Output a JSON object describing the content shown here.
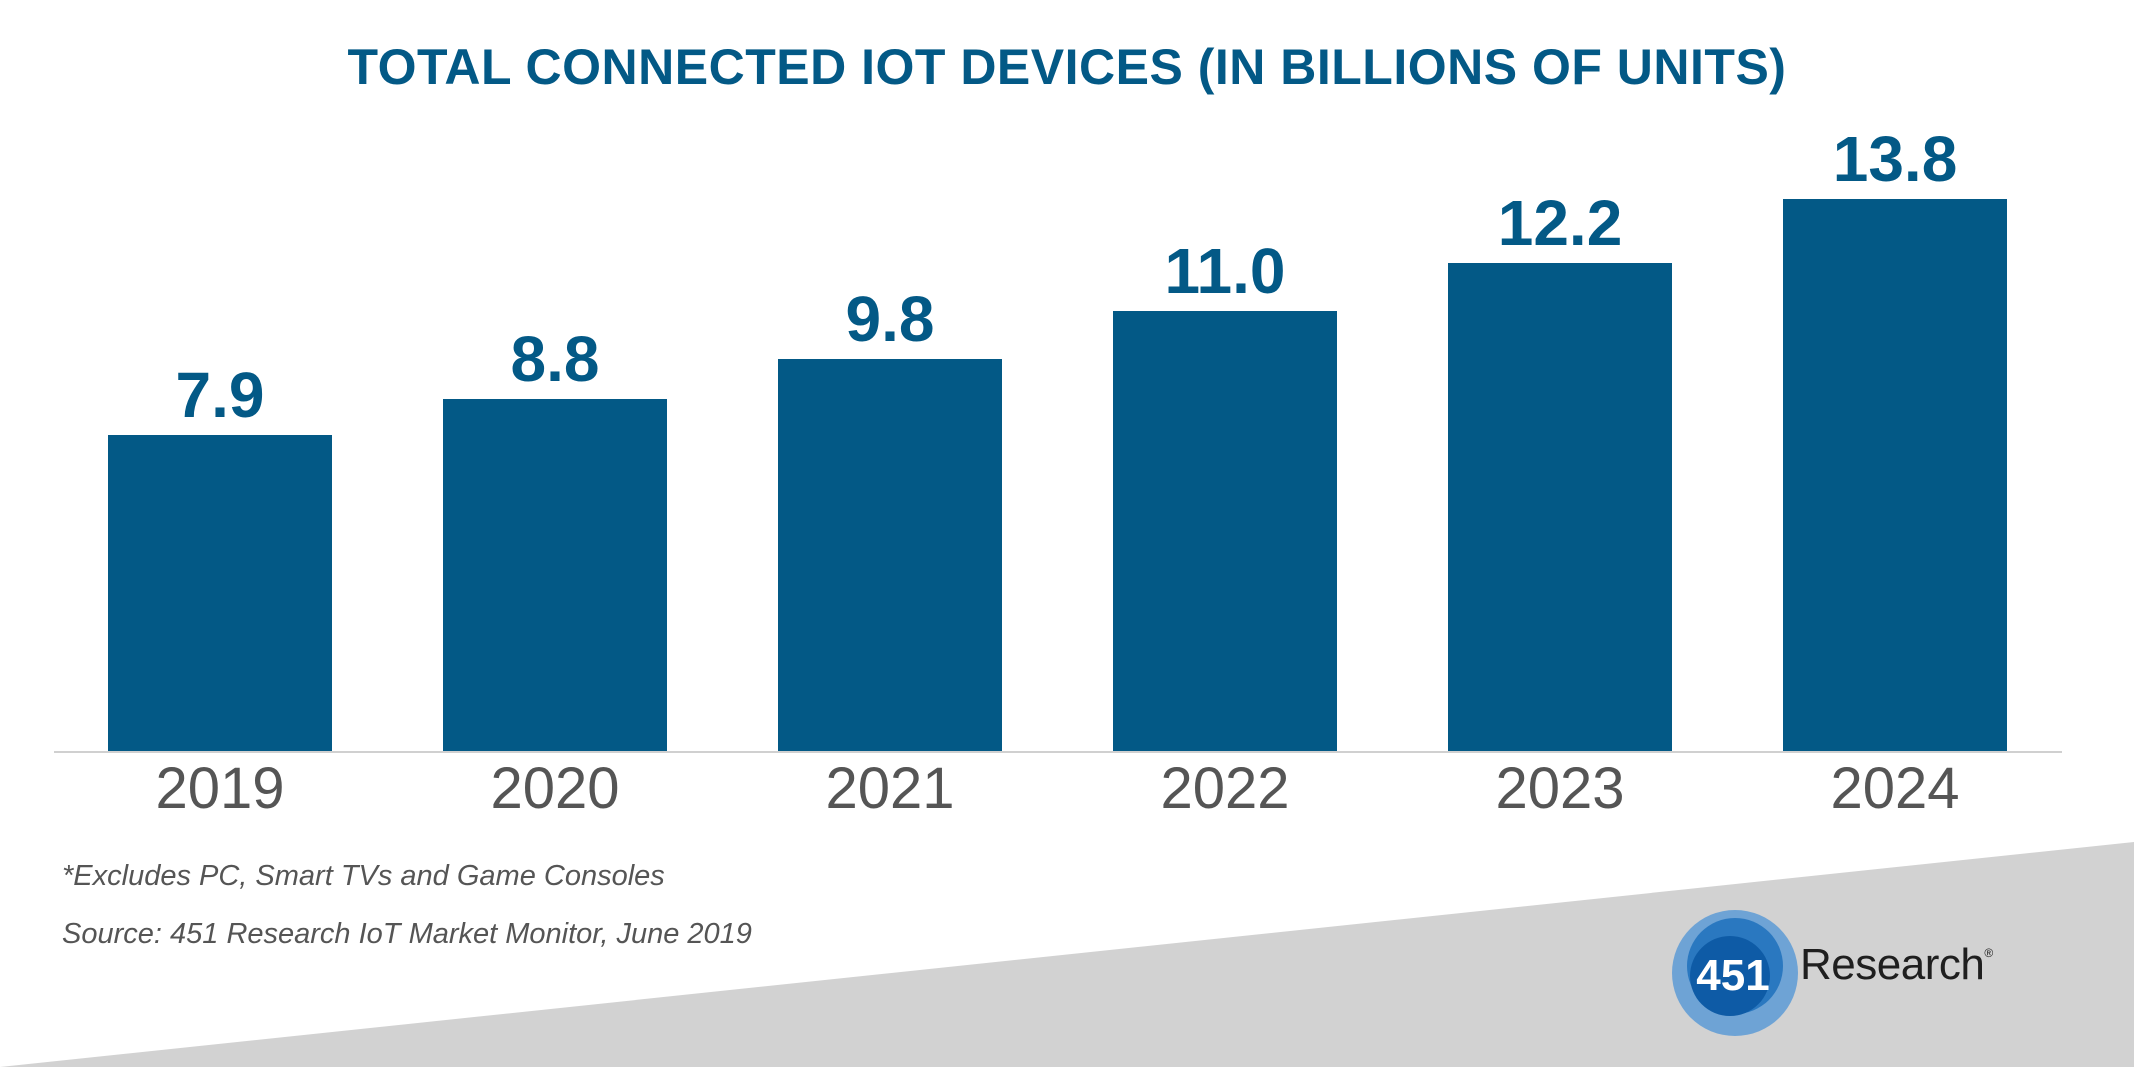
{
  "chart_data": {
    "type": "bar",
    "title": "TOTAL CONNECTED IOT DEVICES (IN BILLIONS OF UNITS)",
    "categories": [
      "2019",
      "2020",
      "2021",
      "2022",
      "2023",
      "2024"
    ],
    "values": [
      7.9,
      8.8,
      9.8,
      11.0,
      12.2,
      13.8
    ],
    "data_labels": [
      "7.9",
      "8.8",
      "9.8",
      "11.0",
      "12.2",
      "13.8"
    ],
    "xlabel": "",
    "ylabel": "",
    "ylim": [
      0,
      13.8
    ],
    "grid": false,
    "legend": "none",
    "colors": {
      "bar": "#035986",
      "label": "#035986",
      "tick": "#555555",
      "axis": "#d0d0d0"
    }
  },
  "footnotes": {
    "exclusion": "*Excludes PC, Smart TVs and Game Consoles",
    "source": "Source: 451 Research IoT Market Monitor, June 2019"
  },
  "logo": {
    "number": "451",
    "word": "Research",
    "mark": "®"
  },
  "colors": {
    "background_wedge": "#d2d2d2",
    "logo_outer": "#4a90d0",
    "logo_inner": "#1d6ab3"
  }
}
